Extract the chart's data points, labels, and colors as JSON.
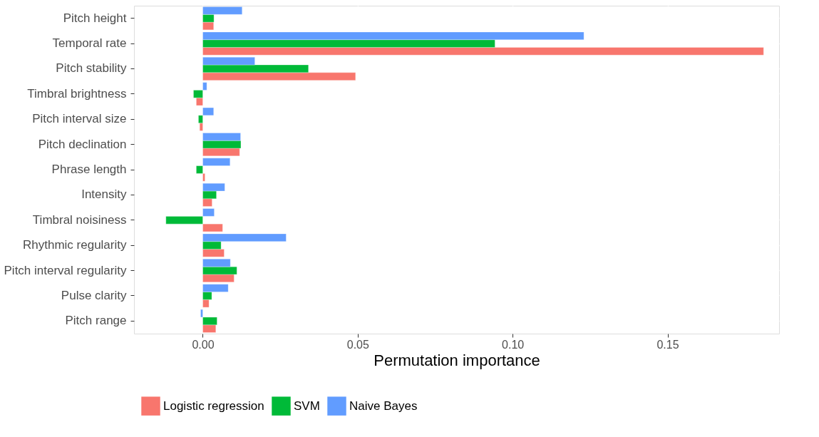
{
  "chart_data": {
    "type": "bar",
    "orientation": "horizontal",
    "xlabel": "Permutation importance",
    "categories": [
      "Pitch height",
      "Temporal rate",
      "Pitch stability",
      "Timbral brightness",
      "Pitch interval size",
      "Pitch declination",
      "Phrase length",
      "Intensity",
      "Timbral noisiness",
      "Rhythmic regularity",
      "Pitch interval regularity",
      "Pulse clarity",
      "Pitch range"
    ],
    "series": [
      {
        "name": "Logistic regression",
        "color": "#f8766d",
        "values": [
          0.0035,
          0.181,
          0.0493,
          -0.0021,
          -0.001,
          0.0119,
          0.0007,
          0.003,
          0.0064,
          0.0069,
          0.0101,
          0.002,
          0.0042
        ]
      },
      {
        "name": "SVM",
        "color": "#00ba38",
        "values": [
          0.0036,
          0.0943,
          0.0341,
          -0.003,
          -0.0014,
          0.0123,
          -0.0021,
          0.0044,
          -0.0119,
          0.0059,
          0.011,
          0.0029,
          0.0046
        ]
      },
      {
        "name": "Naive Bayes",
        "color": "#619cff",
        "values": [
          0.0127,
          0.123,
          0.0168,
          0.0013,
          0.0035,
          0.0122,
          0.0088,
          0.0071,
          0.0037,
          0.0269,
          0.0089,
          0.0082,
          -0.0007
        ]
      }
    ],
    "xlim": [
      -0.0222,
      0.186
    ],
    "xticks": [
      {
        "value": 0,
        "label": "0.00"
      },
      {
        "value": 0.05,
        "label": "0.05"
      },
      {
        "value": 0.1,
        "label": "0.10"
      },
      {
        "value": 0.15,
        "label": "0.15"
      }
    ],
    "grid": true,
    "legend": "bottom"
  }
}
